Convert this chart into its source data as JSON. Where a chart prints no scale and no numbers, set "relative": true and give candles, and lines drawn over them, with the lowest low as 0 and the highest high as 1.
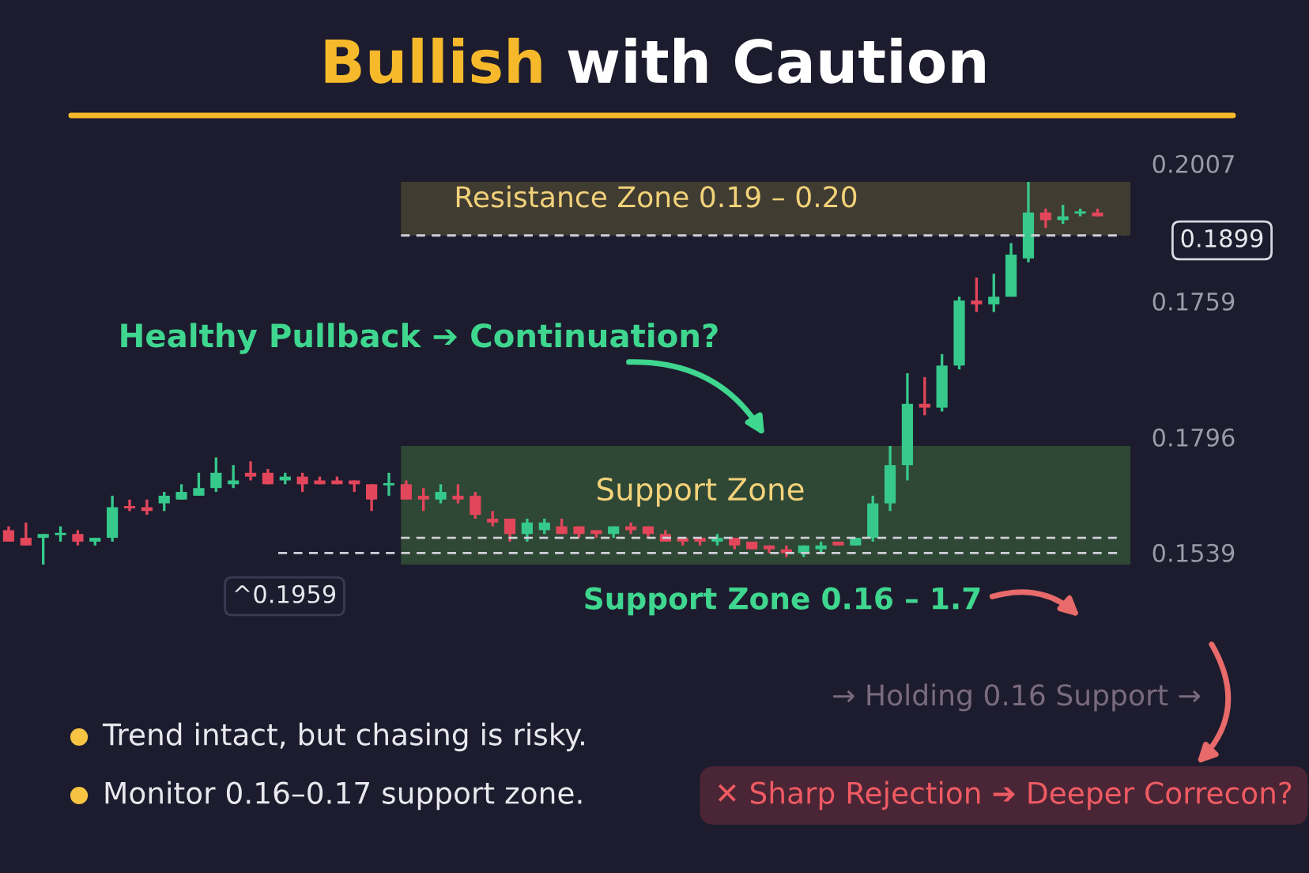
{
  "chart_data": {
    "type": "candlestick",
    "title": "Bullish with Caution",
    "relative": true,
    "categories": [
      null,
      null,
      null,
      null,
      null,
      null,
      null,
      null,
      null,
      null,
      null,
      null,
      null,
      null,
      null,
      null,
      null,
      null,
      null,
      null,
      null,
      null,
      null,
      null,
      null,
      null,
      null,
      null,
      null,
      null,
      null,
      null,
      null,
      null,
      null,
      null,
      null,
      null,
      null,
      null,
      null,
      null,
      null,
      null,
      null,
      null,
      null,
      null,
      null,
      null,
      null,
      null,
      null,
      null,
      null,
      null,
      null,
      null,
      null,
      null,
      null,
      null,
      null,
      null
    ],
    "ohlc": [
      [
        0.09,
        0.1,
        0.06,
        0.06
      ],
      [
        0.07,
        0.11,
        0.05,
        0.05
      ],
      [
        0.07,
        0.08,
        0,
        0.08
      ],
      [
        0.08,
        0.1,
        0.06,
        0.08
      ],
      [
        0.08,
        0.09,
        0.05,
        0.06
      ],
      [
        0.06,
        0.07,
        0.05,
        0.07
      ],
      [
        0.07,
        0.18,
        0.06,
        0.15
      ],
      [
        0.15,
        0.17,
        0.14,
        0.15
      ],
      [
        0.15,
        0.17,
        0.13,
        0.14
      ],
      [
        0.16,
        0.19,
        0.14,
        0.18
      ],
      [
        0.17,
        0.21,
        0.17,
        0.19
      ],
      [
        0.18,
        0.24,
        0.18,
        0.2
      ],
      [
        0.2,
        0.28,
        0.19,
        0.24
      ],
      [
        0.21,
        0.26,
        0.2,
        0.22
      ],
      [
        0.24,
        0.27,
        0.22,
        0.23
      ],
      [
        0.24,
        0.25,
        0.21,
        0.21
      ],
      [
        0.22,
        0.24,
        0.21,
        0.23
      ],
      [
        0.23,
        0.24,
        0.19,
        0.21
      ],
      [
        0.22,
        0.23,
        0.21,
        0.21
      ],
      [
        0.22,
        0.23,
        0.21,
        0.21
      ],
      [
        0.22,
        0.22,
        0.19,
        0.21
      ],
      [
        0.21,
        0.21,
        0.14,
        0.17
      ],
      [
        0.21,
        0.24,
        0.18,
        0.21
      ],
      [
        0.21,
        0.22,
        0.17,
        0.17
      ],
      [
        0.18,
        0.2,
        0.14,
        0.17
      ],
      [
        0.17,
        0.21,
        0.16,
        0.19
      ],
      [
        0.18,
        0.21,
        0.16,
        0.17
      ],
      [
        0.18,
        0.19,
        0.12,
        0.13
      ],
      [
        0.12,
        0.14,
        0.1,
        0.11
      ],
      [
        0.12,
        0.12,
        0.06,
        0.08
      ],
      [
        0.08,
        0.12,
        0.06,
        0.11
      ],
      [
        0.09,
        0.12,
        0.08,
        0.11
      ],
      [
        0.1,
        0.12,
        0.08,
        0.08
      ],
      [
        0.1,
        0.1,
        0.07,
        0.08
      ],
      [
        0.09,
        0.09,
        0.07,
        0.08
      ],
      [
        0.08,
        0.1,
        0.07,
        0.1
      ],
      [
        0.1,
        0.11,
        0.08,
        0.09
      ],
      [
        0.1,
        0.1,
        0.07,
        0.08
      ],
      [
        0.08,
        0.09,
        0.06,
        0.06
      ],
      [
        0.07,
        0.07,
        0.05,
        0.06
      ],
      [
        0.07,
        0.07,
        0.05,
        0.06
      ],
      [
        0.06,
        0.08,
        0.05,
        0.07
      ],
      [
        0.07,
        0.07,
        0.04,
        0.05
      ],
      [
        0.06,
        0.06,
        0.04,
        0.04
      ],
      [
        0.05,
        0.05,
        0.03,
        0.04
      ],
      [
        0.04,
        0.05,
        0.02,
        0.03
      ],
      [
        0.03,
        0.05,
        0.02,
        0.05
      ],
      [
        0.04,
        0.06,
        0.03,
        0.05
      ],
      [
        0.06,
        0.06,
        0.05,
        0.05
      ],
      [
        0.05,
        0.07,
        0.05,
        0.07
      ],
      [
        0.07,
        0.18,
        0.06,
        0.16
      ],
      [
        0.16,
        0.31,
        0.14,
        0.26
      ],
      [
        0.26,
        0.5,
        0.22,
        0.42
      ],
      [
        0.42,
        0.49,
        0.39,
        0.41
      ],
      [
        0.41,
        0.55,
        0.4,
        0.52
      ],
      [
        0.52,
        0.7,
        0.51,
        0.69
      ],
      [
        0.69,
        0.75,
        0.66,
        0.68
      ],
      [
        0.68,
        0.76,
        0.66,
        0.7
      ],
      [
        0.7,
        0.84,
        0.7,
        0.81
      ],
      [
        0.8,
        1,
        0.79,
        0.92
      ],
      [
        0.92,
        0.93,
        0.88,
        0.9
      ],
      [
        0.9,
        0.94,
        0.89,
        0.91
      ],
      [
        0.92,
        0.93,
        0.91,
        0.92
      ],
      [
        0.92,
        0.93,
        0.91,
        0.91
      ]
    ],
    "colors": [
      "#e2465b",
      "#e2465b",
      "#36c98b",
      "#36c98b",
      "#e2465b",
      "#36c98b",
      "#36c98b",
      "#e2465b",
      "#e2465b",
      "#36c98b",
      "#36c98b",
      "#36c98b",
      "#36c98b",
      "#36c98b",
      "#e2465b",
      "#e2465b",
      "#36c98b",
      "#e2465b",
      "#e2465b",
      "#e2465b",
      "#e2465b",
      "#e2465b",
      "#36c98b",
      "#e2465b",
      "#e2465b",
      "#36c98b",
      "#e2465b",
      "#e2465b",
      "#e2465b",
      "#e2465b",
      "#36c98b",
      "#36c98b",
      "#e2465b",
      "#e2465b",
      "#e2465b",
      "#36c98b",
      "#e2465b",
      "#e2465b",
      "#e2465b",
      "#e2465b",
      "#e2465b",
      "#36c98b",
      "#e2465b",
      "#e2465b",
      "#e2465b",
      "#e2465b",
      "#36c98b",
      "#36c98b",
      "#e2465b",
      "#36c98b",
      "#36c98b",
      "#36c98b",
      "#36c98b",
      "#e2465b",
      "#36c98b",
      "#36c98b",
      "#e2465b",
      "#36c98b",
      "#36c98b",
      "#36c98b",
      "#e2465b",
      "#36c98b",
      "#36c98b",
      "#e2465b"
    ],
    "bands": [
      {
        "axis": "y",
        "from": 0.86,
        "to": 1.0,
        "label": "Resistance Zone 0.19 – 0.20",
        "color": "#5e5834"
      },
      {
        "axis": "y",
        "from": 0,
        "to": 0.31,
        "label": "Support Zone",
        "color": "#3f6b3c"
      }
    ],
    "ref_lines": [
      {
        "axis": "y",
        "value": 0.86,
        "line_style": "dashed"
      },
      {
        "axis": "y",
        "value": 0.07,
        "line_style": "dashed"
      },
      {
        "axis": "y",
        "value": 0.03,
        "line_style": "dashed"
      }
    ],
    "annotations": [
      "0.2007",
      "0.1759",
      "0.1796",
      "0.1539",
      "Healthy Pullback ➔ Continuation?",
      "Support Zone 0.16 – 1.7",
      "→ Holding 0.16 Support →",
      "✕ Sharp Rejection ➔ Deeper Correcon?",
      "Trend intact, but chasing is risky.",
      "Monitor 0.16–0.17 support zone.",
      "0.1899",
      "^0.1959"
    ]
  }
}
